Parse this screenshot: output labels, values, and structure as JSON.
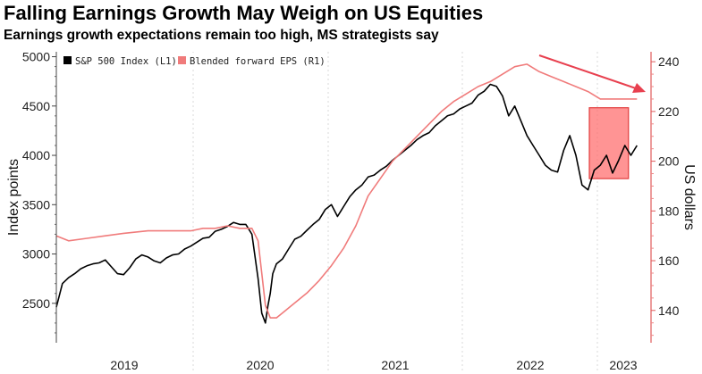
{
  "title": "Falling Earnings Growth May Weigh on US Equities",
  "subtitle": "Earnings growth expectations remain too high, MS strategists say",
  "chart_data": {
    "type": "line",
    "x_tick_labels": [
      "2019",
      "2020",
      "2021",
      "2022",
      "2023"
    ],
    "y_left": {
      "label": "Index points",
      "ticks": [
        2500,
        3000,
        3500,
        4000,
        4500,
        5000
      ],
      "ylim": [
        2100,
        5050
      ]
    },
    "y_right": {
      "label": "US dollars",
      "ticks": [
        140,
        160,
        180,
        200,
        220,
        240
      ],
      "ylim": [
        127,
        244
      ]
    },
    "xlim": [
      2018.45,
      2023.3
    ],
    "legend_position": "top-left",
    "series": [
      {
        "name": "S&P 500 Index (L1)",
        "axis": "left",
        "color": "#000000",
        "x": [
          2018.45,
          2018.5,
          2018.55,
          2018.6,
          2018.65,
          2018.7,
          2018.75,
          2018.8,
          2018.85,
          2018.9,
          2018.95,
          2019.0,
          2019.05,
          2019.1,
          2019.15,
          2019.2,
          2019.25,
          2019.3,
          2019.35,
          2019.4,
          2019.45,
          2019.5,
          2019.55,
          2019.6,
          2019.65,
          2019.7,
          2019.75,
          2019.8,
          2019.85,
          2019.9,
          2019.95,
          2020.0,
          2020.05,
          2020.1,
          2020.13,
          2020.16,
          2020.18,
          2020.2,
          2020.22,
          2020.25,
          2020.3,
          2020.35,
          2020.4,
          2020.45,
          2020.5,
          2020.55,
          2020.6,
          2020.65,
          2020.7,
          2020.75,
          2020.8,
          2020.85,
          2020.9,
          2020.95,
          2021.0,
          2021.05,
          2021.1,
          2021.15,
          2021.2,
          2021.25,
          2021.3,
          2021.35,
          2021.4,
          2021.45,
          2021.5,
          2021.55,
          2021.6,
          2021.65,
          2021.7,
          2021.75,
          2021.8,
          2021.85,
          2021.9,
          2021.95,
          2022.0,
          2022.05,
          2022.1,
          2022.15,
          2022.2,
          2022.25,
          2022.3,
          2022.35,
          2022.4,
          2022.45,
          2022.5,
          2022.55,
          2022.6,
          2022.65,
          2022.7,
          2022.75,
          2022.8,
          2022.85,
          2022.9,
          2022.95,
          2023.0,
          2023.05,
          2023.1,
          2023.15,
          2023.2
        ],
        "y": [
          2460,
          2700,
          2760,
          2800,
          2850,
          2880,
          2900,
          2910,
          2940,
          2870,
          2800,
          2790,
          2860,
          2950,
          2990,
          2970,
          2930,
          2910,
          2960,
          2990,
          3000,
          3050,
          3080,
          3120,
          3160,
          3170,
          3230,
          3250,
          3280,
          3320,
          3300,
          3300,
          3200,
          2750,
          2400,
          2300,
          2470,
          2600,
          2800,
          2900,
          2950,
          3050,
          3150,
          3180,
          3240,
          3300,
          3350,
          3450,
          3500,
          3380,
          3480,
          3580,
          3650,
          3700,
          3780,
          3800,
          3850,
          3890,
          3950,
          4000,
          4050,
          4100,
          4160,
          4200,
          4230,
          4300,
          4350,
          4400,
          4420,
          4470,
          4500,
          4530,
          4610,
          4650,
          4720,
          4700,
          4600,
          4400,
          4500,
          4350,
          4200,
          4100,
          4000,
          3900,
          3850,
          3830,
          4050,
          4200,
          4000,
          3700,
          3650,
          3850,
          3900,
          4000,
          3820,
          3950,
          4100,
          4000,
          4100
        ]
      },
      {
        "name": "Blended forward EPS (R1)",
        "axis": "right",
        "color": "#f07b7b",
        "x": [
          2018.45,
          2018.55,
          2018.7,
          2018.85,
          2019.0,
          2019.2,
          2019.4,
          2019.55,
          2019.65,
          2019.75,
          2019.85,
          2019.95,
          2020.05,
          2020.1,
          2020.13,
          2020.16,
          2020.2,
          2020.25,
          2020.3,
          2020.4,
          2020.5,
          2020.6,
          2020.7,
          2020.8,
          2020.9,
          2021.0,
          2021.1,
          2021.2,
          2021.3,
          2021.4,
          2021.5,
          2021.6,
          2021.7,
          2021.8,
          2021.9,
          2022.0,
          2022.1,
          2022.2,
          2022.3,
          2022.4,
          2022.5,
          2022.6,
          2022.7,
          2022.8,
          2022.9,
          2023.0,
          2023.1,
          2023.2
        ],
        "y": [
          170,
          168,
          169,
          170,
          171,
          172,
          172,
          172,
          173,
          173,
          174,
          173,
          173,
          168,
          155,
          142,
          137,
          137,
          139,
          143,
          147,
          152,
          158,
          165,
          174,
          186,
          193,
          200,
          205,
          210,
          215,
          220,
          224,
          227,
          230,
          232,
          235,
          238,
          239,
          236,
          234,
          232,
          230,
          228,
          225,
          225,
          225,
          225
        ]
      }
    ],
    "annotations": [
      {
        "type": "arrow",
        "color": "#e8404f",
        "direction": "down-right"
      },
      {
        "type": "highlight-box",
        "color": "#ff7070"
      }
    ]
  }
}
